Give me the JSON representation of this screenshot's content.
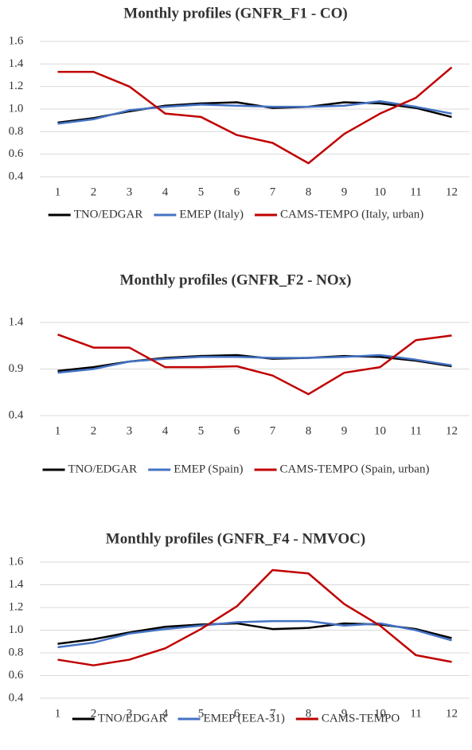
{
  "chart_data": [
    {
      "type": "line",
      "title": "Monthly profiles (GNFR_F1 - CO)",
      "categories": [
        1,
        2,
        3,
        4,
        5,
        6,
        7,
        8,
        9,
        10,
        11,
        12
      ],
      "ylim": [
        0.4,
        1.6
      ],
      "yticks": [
        0.4,
        0.6,
        0.8,
        {
          "value": 1,
          "label": "1.0"
        },
        1.2,
        1.4,
        1.6
      ],
      "grid": true,
      "series": [
        {
          "name": "TNO/EDGAR",
          "color": "#000000",
          "values": [
            0.88,
            0.92,
            0.98,
            1.03,
            1.05,
            1.06,
            1.01,
            1.02,
            1.06,
            1.05,
            1.01,
            0.93
          ]
        },
        {
          "name": "EMEP (Italy)",
          "color": "#4472c4",
          "values": [
            0.87,
            0.91,
            0.99,
            1.02,
            1.04,
            1.03,
            1.02,
            1.02,
            1.03,
            1.07,
            1.02,
            0.96
          ]
        },
        {
          "name": "CAMS-TEMPO (Italy, urban)",
          "color": "#c00000",
          "values": [
            1.33,
            1.33,
            1.2,
            0.96,
            0.93,
            0.77,
            0.7,
            0.52,
            0.78,
            0.96,
            1.1,
            1.37
          ]
        }
      ]
    },
    {
      "type": "line",
      "title": "Monthly profiles (GNFR_F2 - NOx)",
      "categories": [
        1,
        2,
        3,
        4,
        5,
        6,
        7,
        8,
        9,
        10,
        11,
        12
      ],
      "ylim": [
        0.4,
        1.4
      ],
      "yticks": [
        0.4,
        0.9,
        1.4
      ],
      "grid": true,
      "series": [
        {
          "name": "TNO/EDGAR",
          "color": "#000000",
          "values": [
            0.88,
            0.92,
            0.98,
            1.02,
            1.04,
            1.05,
            1.01,
            1.02,
            1.04,
            1.03,
            0.99,
            0.93
          ]
        },
        {
          "name": "EMEP (Spain)",
          "color": "#4472c4",
          "values": [
            0.86,
            0.9,
            0.98,
            1.01,
            1.03,
            1.03,
            1.02,
            1.02,
            1.03,
            1.05,
            1.0,
            0.94
          ]
        },
        {
          "name": "CAMS-TEMPO (Spain, urban)",
          "color": "#c00000",
          "values": [
            1.27,
            1.13,
            1.13,
            0.92,
            0.92,
            0.93,
            0.83,
            0.63,
            0.86,
            0.92,
            1.21,
            1.26
          ]
        }
      ]
    },
    {
      "type": "line",
      "title": "Monthly profiles (GNFR_F4 - NMVOC)",
      "categories": [
        1,
        2,
        3,
        4,
        5,
        6,
        7,
        8,
        9,
        10,
        11,
        12
      ],
      "ylim": [
        0.4,
        1.6
      ],
      "yticks": [
        0.4,
        0.6,
        0.8,
        {
          "value": 1,
          "label": "1.0"
        },
        1.2,
        1.4,
        1.6
      ],
      "grid": true,
      "series": [
        {
          "name": "TNO/EDGAR",
          "color": "#000000",
          "values": [
            0.88,
            0.92,
            0.98,
            1.03,
            1.05,
            1.06,
            1.01,
            1.02,
            1.06,
            1.05,
            1.01,
            0.93
          ]
        },
        {
          "name": "EMEP (EEA-31)",
          "color": "#4472c4",
          "values": [
            0.85,
            0.89,
            0.97,
            1.01,
            1.04,
            1.07,
            1.08,
            1.08,
            1.04,
            1.06,
            1.0,
            0.91
          ]
        },
        {
          "name": "CAMS-TEMPO",
          "color": "#c00000",
          "values": [
            0.74,
            0.69,
            0.74,
            0.84,
            1.01,
            1.21,
            1.53,
            1.5,
            1.23,
            1.04,
            0.78,
            0.72
          ]
        }
      ]
    }
  ]
}
